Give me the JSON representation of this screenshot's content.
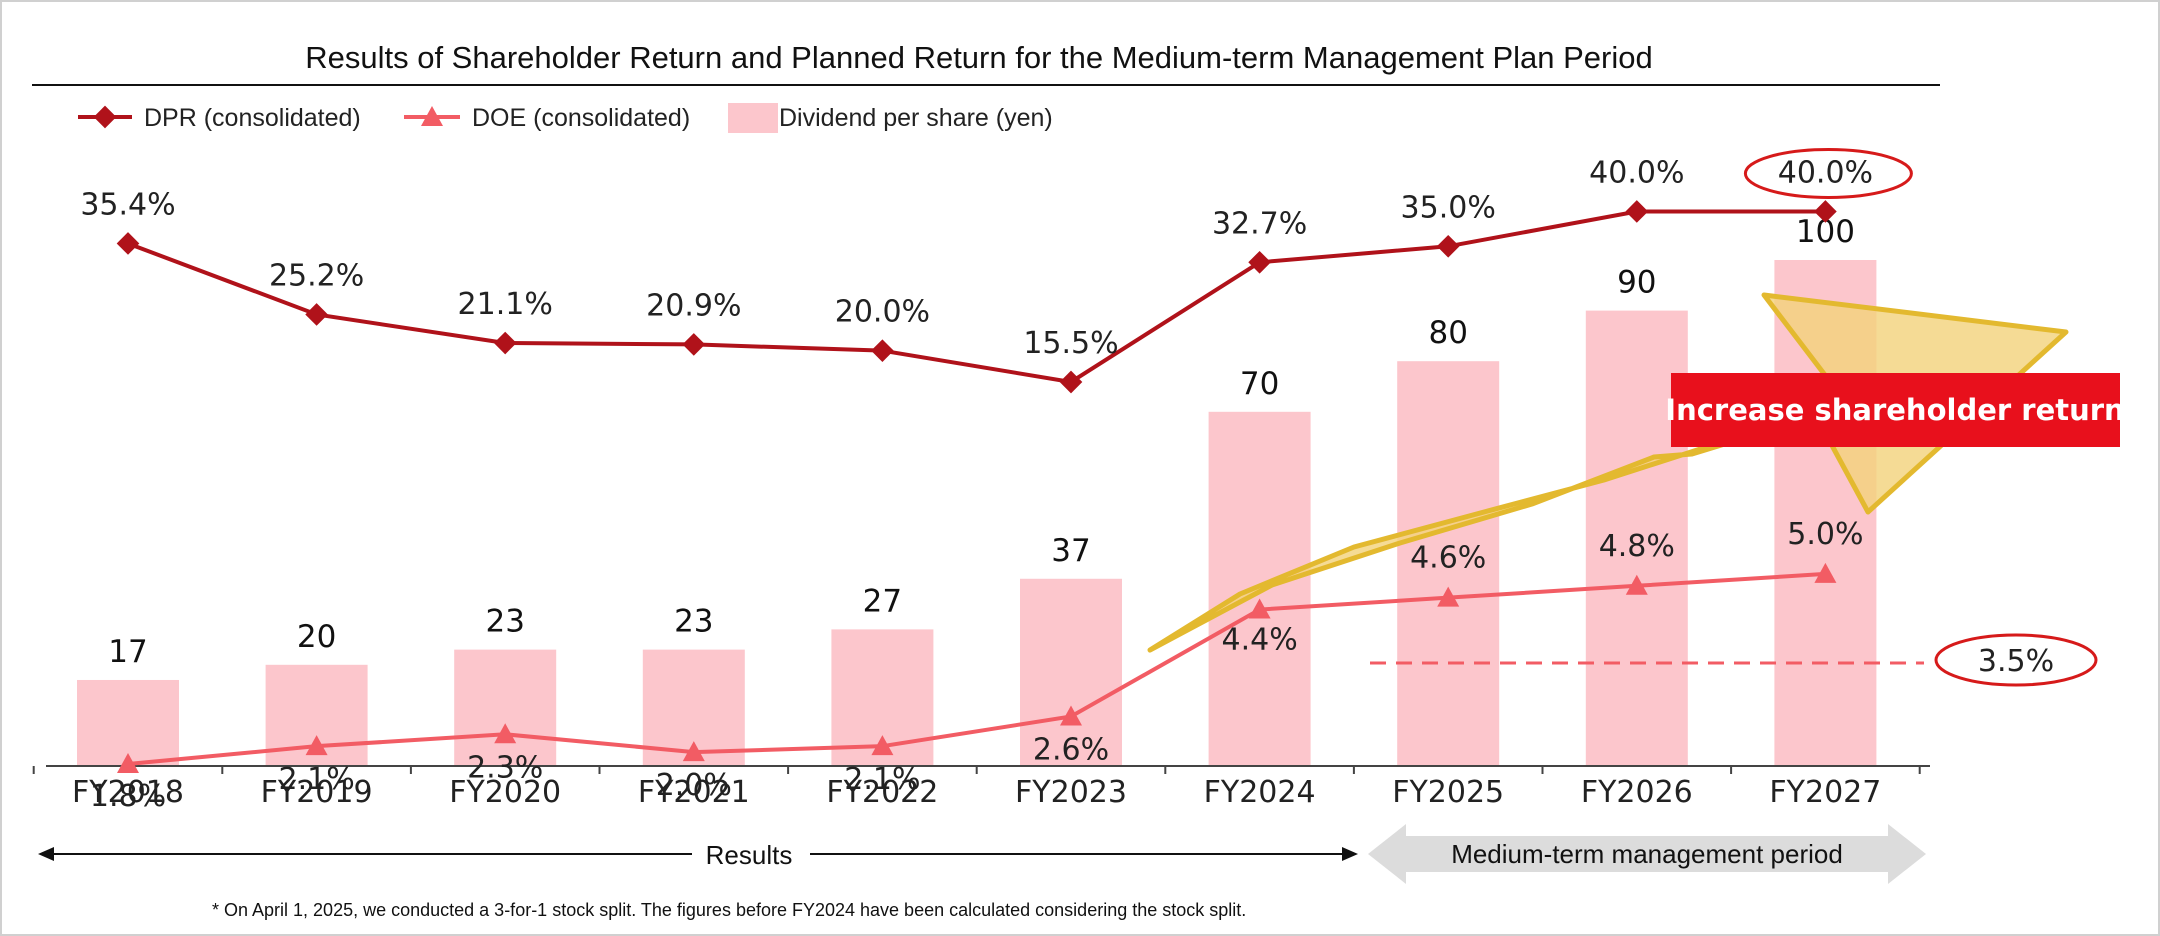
{
  "chart_data": {
    "type": "bar",
    "title": "Results of Shareholder Return and Planned Return for the Medium-term Management Plan Period",
    "categories": [
      "FY2018",
      "FY2019",
      "FY2020",
      "FY2021",
      "FY2022",
      "FY2023",
      "FY2024",
      "FY2025",
      "FY2026",
      "FY2027"
    ],
    "series": [
      {
        "name": "Dividend per share (yen)",
        "type": "bar",
        "values": [
          17,
          20,
          23,
          23,
          27,
          37,
          70,
          80,
          90,
          100
        ],
        "labels": [
          "17",
          "20",
          "23",
          "23",
          "27",
          "37",
          "70",
          "80",
          "90",
          "100"
        ],
        "color": "#fcc6cc"
      },
      {
        "name": "DOE (consolidated)",
        "type": "line",
        "values": [
          1.8,
          2.1,
          2.3,
          2.0,
          2.1,
          2.6,
          4.4,
          4.6,
          4.8,
          5.0
        ],
        "labels": [
          "1.8%",
          "2.1%",
          "2.3%",
          "2.0%",
          "2.1%",
          "2.6%",
          "4.4%",
          "4.6%",
          "4.8%",
          "5.0%"
        ],
        "color": "#f25c64"
      },
      {
        "name": "DPR (consolidated)",
        "type": "line",
        "values": [
          35.4,
          25.2,
          21.1,
          20.9,
          20.0,
          15.5,
          32.7,
          35.0,
          40.0,
          40.0
        ],
        "labels": [
          "35.4%",
          "25.2%",
          "21.1%",
          "20.9%",
          "20.0%",
          "15.5%",
          "32.7%",
          "35.0%",
          "40.0%",
          "40.0%"
        ],
        "color": "#b0121a"
      }
    ],
    "legend_position": "top-left",
    "grid": false,
    "annotations": {
      "callout": "Increase shareholder return",
      "doe_target_label": "3.5%",
      "doe_target_value": 3.5,
      "circled_dpr_label": "40.0%",
      "results_label": "Results",
      "plan_label": "Medium-term management period",
      "footnote": "* On April 1, 2025, we conducted a 3-for-1 stock split. The figures before FY2024 have been calculated considering the stock split."
    },
    "colors": {
      "dpr": "#b0121a",
      "doe": "#f25c64",
      "bar": "#fcc6cc",
      "callout": "#e8101c",
      "arrow_fill": "#f2d27a",
      "arrow_stroke": "#e3b92f",
      "circle": "#d61a1a",
      "period_arrow": "#dcdcdc"
    }
  }
}
